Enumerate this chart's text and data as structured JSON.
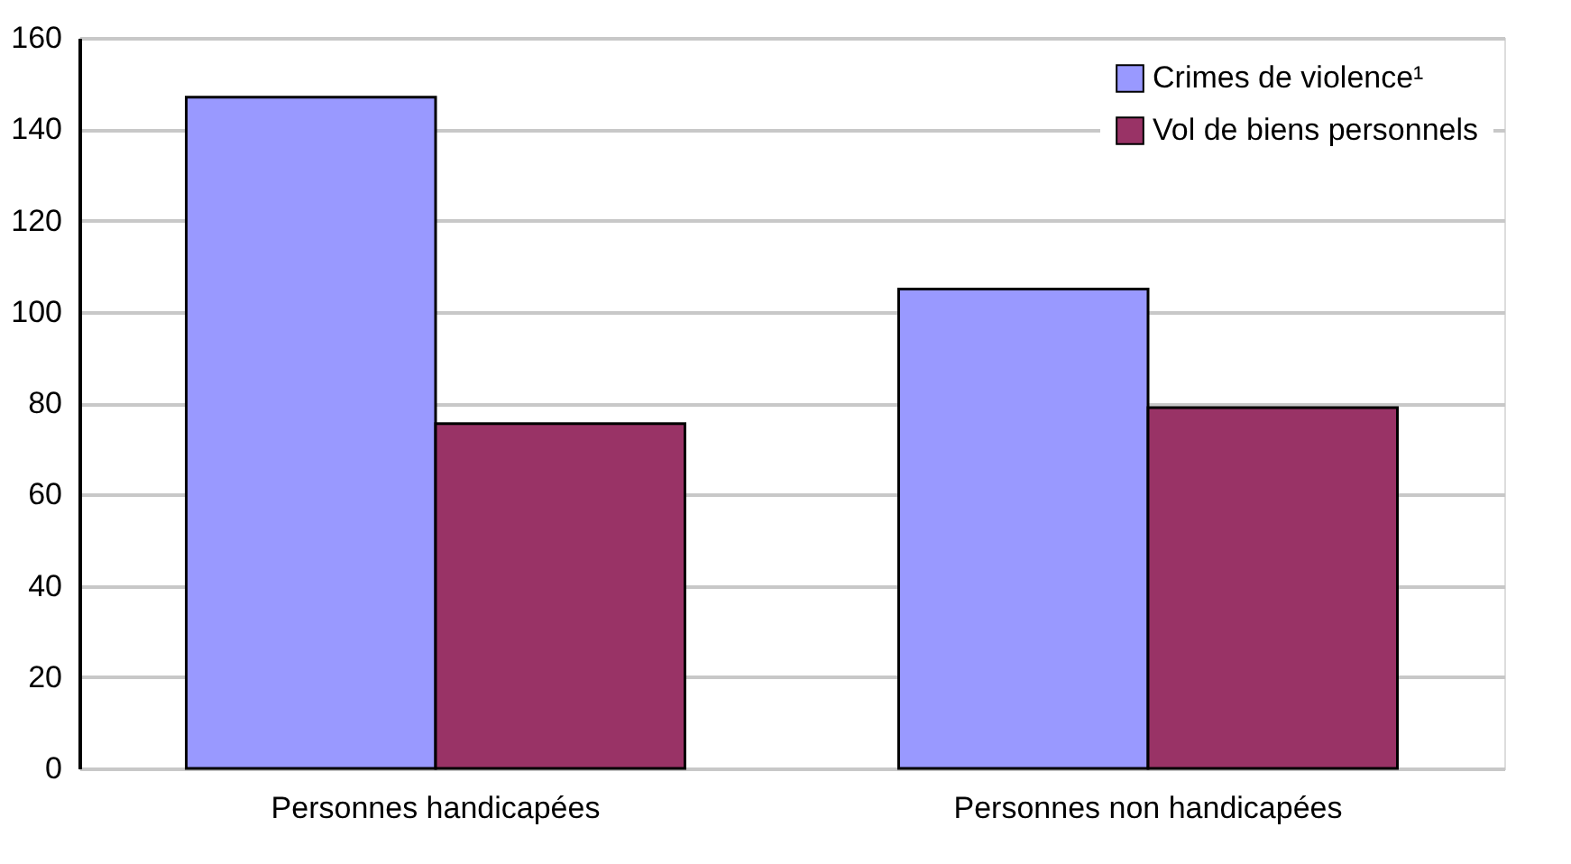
{
  "chart_data": {
    "type": "bar",
    "categories": [
      "Personnes handicapées",
      "Personnes non handicapées"
    ],
    "series": [
      {
        "name": "Crimes de violence¹",
        "color": "#9999ff",
        "values": [
          147,
          105
        ]
      },
      {
        "name": "Vol de biens personnels",
        "color": "#993366",
        "values": [
          75.5,
          79
        ]
      }
    ],
    "ylim": [
      0,
      160
    ],
    "yticks": [
      0,
      20,
      40,
      60,
      80,
      100,
      120,
      140,
      160
    ],
    "grid": "y",
    "legend": "top right"
  }
}
